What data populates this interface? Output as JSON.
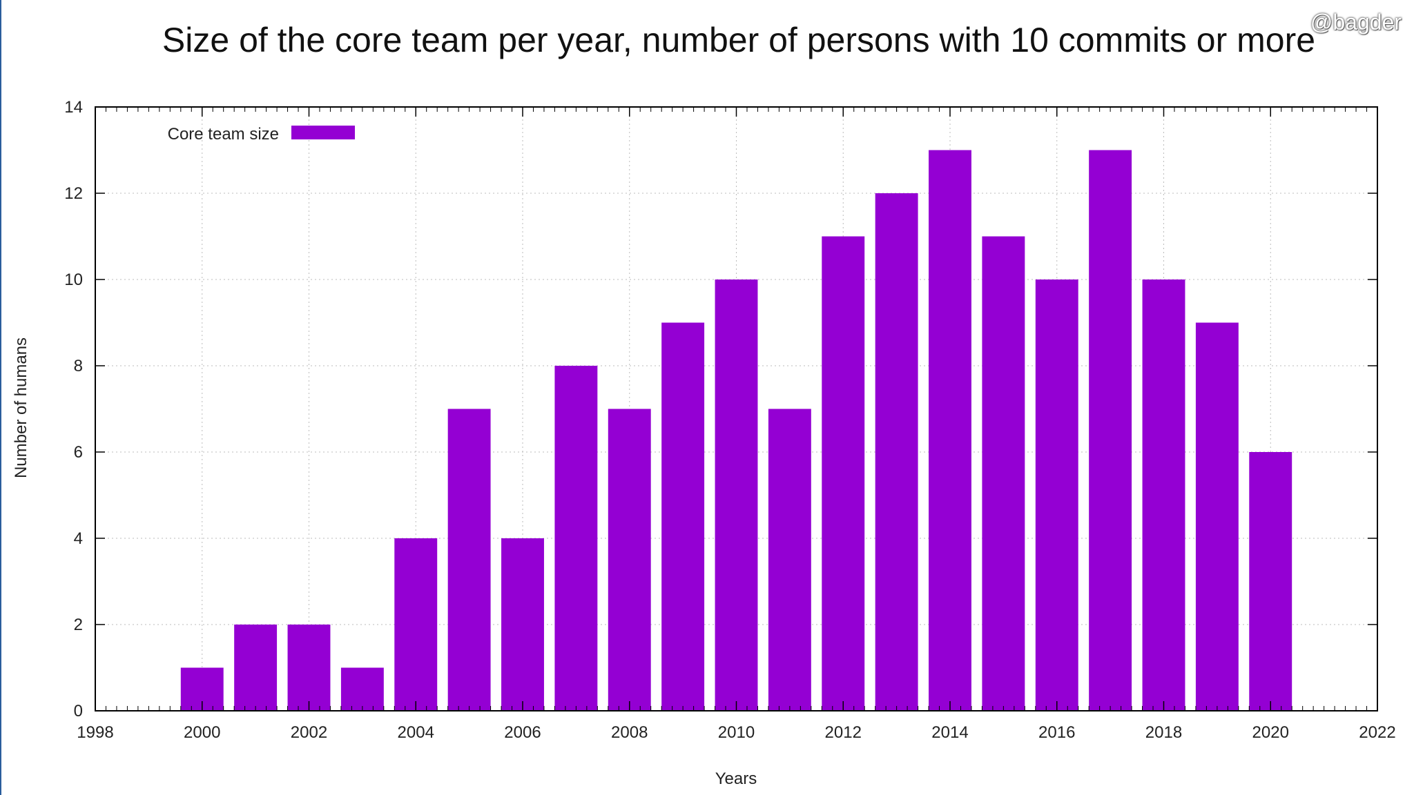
{
  "watermark": "@bagder",
  "chart_data": {
    "type": "bar",
    "title": "Size of the core team per year, number of persons with 10 commits or more",
    "xlabel": "Years",
    "ylabel": "Number of humans",
    "legend": {
      "label": "Core team size",
      "position": "top-left"
    },
    "color": "#9400d3",
    "grid": true,
    "xlim": [
      1998,
      2022
    ],
    "ylim": [
      0,
      14
    ],
    "xticks": [
      "1998",
      "2000",
      "2002",
      "2004",
      "2006",
      "2008",
      "2010",
      "2012",
      "2014",
      "2016",
      "2018",
      "2020",
      "2022"
    ],
    "yticks": [
      "0",
      "2",
      "4",
      "6",
      "8",
      "10",
      "12",
      "14"
    ],
    "categories": [
      2000,
      2001,
      2002,
      2003,
      2004,
      2005,
      2006,
      2007,
      2008,
      2009,
      2010,
      2011,
      2012,
      2013,
      2014,
      2015,
      2016,
      2017,
      2018,
      2019,
      2020
    ],
    "values": [
      1,
      2,
      2,
      1,
      4,
      7,
      4,
      8,
      7,
      9,
      10,
      7,
      11,
      12,
      13,
      11,
      10,
      13,
      10,
      9,
      6
    ]
  }
}
